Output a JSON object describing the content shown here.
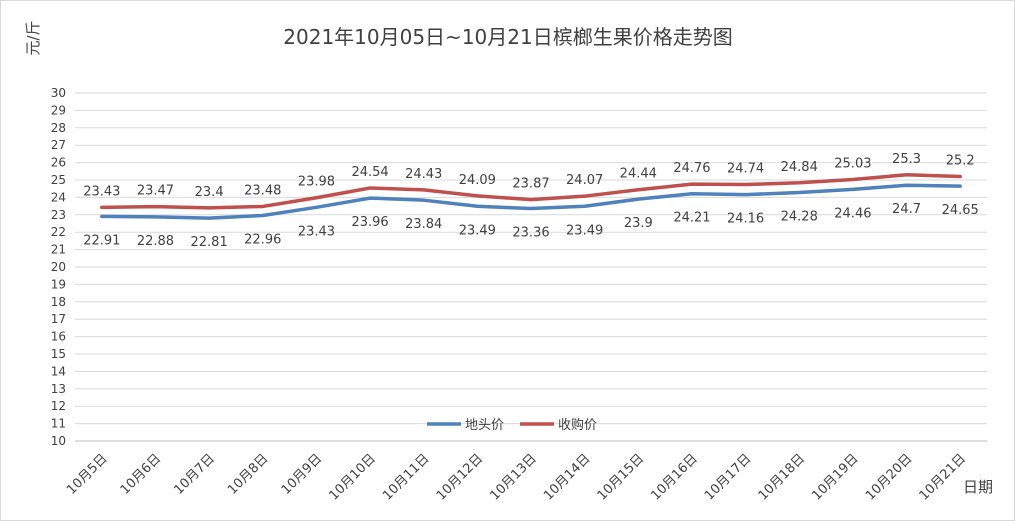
{
  "chart_data": {
    "type": "line",
    "title": "2021年10月05日~10月21日槟榔生果价格走势图",
    "ylabel": "元/斤",
    "xlabel": "日期",
    "ylim": [
      10,
      30
    ],
    "yticks": [
      10,
      11,
      12,
      13,
      14,
      15,
      16,
      17,
      18,
      19,
      20,
      21,
      22,
      23,
      24,
      25,
      26,
      27,
      28,
      29,
      30
    ],
    "grid": true,
    "legend": "bottom-center",
    "categories": [
      "10月5日",
      "10月6日",
      "10月7日",
      "10月8日",
      "10月9日",
      "10月10日",
      "10月11日",
      "10月12日",
      "10月13日",
      "10月14日",
      "10月15日",
      "10月16日",
      "10月17日",
      "10月18日",
      "10月19日",
      "10月20日",
      "10月21日"
    ],
    "series": [
      {
        "name": "地头价",
        "color": "#4f81bd",
        "values": [
          22.91,
          22.88,
          22.81,
          22.96,
          23.43,
          23.96,
          23.84,
          23.49,
          23.36,
          23.49,
          23.9,
          24.21,
          24.16,
          24.28,
          24.46,
          24.7,
          24.65
        ]
      },
      {
        "name": "收购价",
        "color": "#c0504d",
        "values": [
          23.43,
          23.47,
          23.4,
          23.48,
          23.98,
          24.54,
          24.43,
          24.09,
          23.87,
          24.07,
          24.44,
          24.76,
          24.74,
          24.84,
          25.03,
          25.3,
          25.2
        ]
      }
    ]
  }
}
